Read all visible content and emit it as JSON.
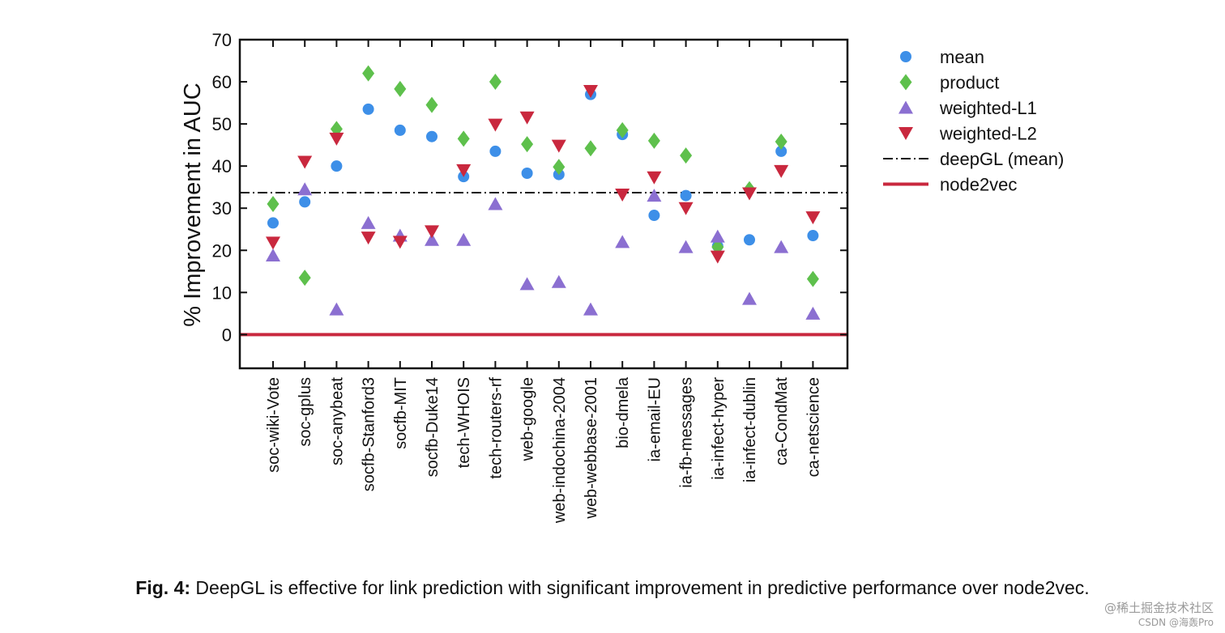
{
  "chart_data": {
    "type": "scatter",
    "ylabel": "% Improvement in AUC",
    "xlabel": "",
    "ylim": [
      -8,
      70
    ],
    "yticks": [
      0,
      10,
      20,
      30,
      40,
      50,
      60,
      70
    ],
    "categories": [
      "soc-wiki-Vote",
      "soc-gplus",
      "soc-anybeat",
      "socfb-Stanford3",
      "socfb-MIT",
      "socfb-Duke14",
      "tech-WHOIS",
      "tech-routers-rf",
      "web-google",
      "web-indochina-2004",
      "web-webbase-2001",
      "bio-dmela",
      "ia-email-EU",
      "ia-fb-messages",
      "ia-infect-hyper",
      "ia-infect-dublin",
      "ca-CondMat",
      "ca-netscience"
    ],
    "series": [
      {
        "name": "mean",
        "marker": "circle",
        "color": "#3d8fe8",
        "values": [
          26.5,
          31.5,
          40.0,
          53.5,
          48.5,
          47.0,
          37.5,
          43.5,
          38.3,
          38.0,
          57.0,
          47.5,
          28.3,
          33.0,
          21.0,
          22.5,
          43.5,
          23.5
        ]
      },
      {
        "name": "product",
        "marker": "diamond",
        "color": "#5ec04c",
        "values": [
          31.0,
          13.5,
          48.8,
          62.0,
          58.3,
          54.5,
          46.5,
          60.0,
          45.2,
          39.8,
          44.2,
          48.5,
          46.0,
          42.5,
          20.8,
          34.5,
          45.8,
          13.2
        ]
      },
      {
        "name": "weighted-L1",
        "marker": "triangle-up",
        "color": "#8b6fd1",
        "values": [
          18.8,
          34.5,
          6.0,
          26.5,
          23.5,
          22.5,
          22.5,
          31.0,
          12.0,
          12.5,
          6.0,
          22.0,
          33.0,
          20.8,
          23.3,
          8.5,
          20.8,
          5.0
        ]
      },
      {
        "name": "weighted-L2",
        "marker": "triangle-down",
        "color": "#c9283e",
        "values": [
          21.8,
          41.0,
          46.5,
          23.0,
          22.0,
          24.5,
          39.0,
          49.8,
          51.5,
          44.8,
          57.8,
          33.2,
          37.3,
          30.0,
          18.5,
          33.5,
          38.8,
          27.8
        ]
      }
    ],
    "reference_lines": [
      {
        "name": "deepGL (mean)",
        "value": 33.7,
        "style": "dashdot",
        "color": "#111111"
      },
      {
        "name": "node2vec",
        "value": 0,
        "style": "solid",
        "color": "#c9283e"
      }
    ],
    "legend_position": "right",
    "grid": false
  },
  "caption": {
    "label": "Fig. 4:",
    "text": "DeepGL is effective for link prediction with significant improvement in predictive performance over node2vec."
  },
  "watermark": {
    "line1": "@稀土掘金技术社区",
    "line2": "CSDN @海轰Pro"
  }
}
